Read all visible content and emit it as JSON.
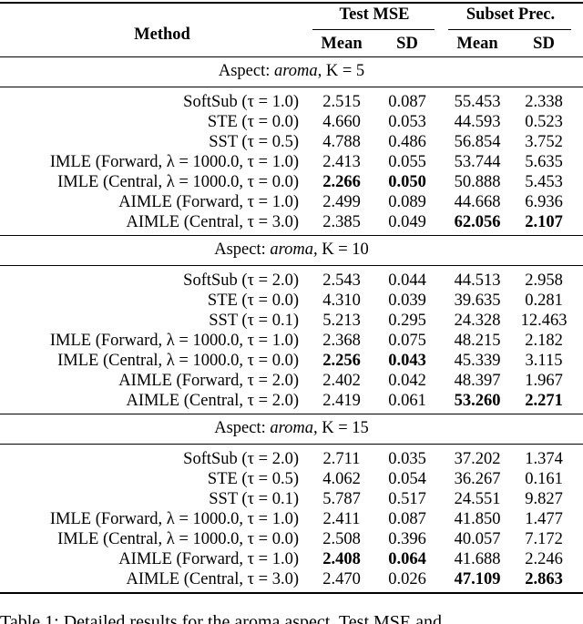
{
  "table": {
    "header": {
      "method": "Method",
      "groups": [
        {
          "label": "Test MSE",
          "cols": [
            "Mean",
            "SD"
          ]
        },
        {
          "label": "Subset Prec.",
          "cols": [
            "Mean",
            "SD"
          ]
        }
      ]
    },
    "sections": [
      {
        "aspect": {
          "prefix": "Aspect:",
          "name": "aroma",
          "k": "K = 5"
        },
        "rows": [
          [
            "SoftSub (τ = 1.0)",
            "2.515",
            "0.087",
            "55.453",
            "2.338"
          ],
          [
            "STE (τ = 0.0)",
            "4.660",
            "0.053",
            "44.593",
            "0.523"
          ],
          [
            "SST (τ = 0.5)",
            "4.788",
            "0.486",
            "56.854",
            "3.752"
          ],
          [
            "IMLE (Forward, λ = 1000.0, τ = 1.0)",
            "2.413",
            "0.055",
            "53.744",
            "5.635"
          ],
          [
            "IMLE (Central, λ = 1000.0, τ = 0.0)",
            "2.266",
            "0.050",
            "50.888",
            "5.453"
          ],
          [
            "AIMLE (Forward, τ = 1.0)",
            "2.499",
            "0.089",
            "44.668",
            "6.936"
          ],
          [
            "AIMLE (Central, τ = 3.0)",
            "2.385",
            "0.049",
            "62.056",
            "2.107"
          ]
        ],
        "bold": [
          [
            4,
            1
          ],
          [
            4,
            2
          ],
          [
            6,
            3
          ],
          [
            6,
            4
          ]
        ]
      },
      {
        "aspect": {
          "prefix": "Aspect:",
          "name": "aroma",
          "k": "K = 10"
        },
        "rows": [
          [
            "SoftSub (τ = 2.0)",
            "2.543",
            "0.044",
            "44.513",
            "2.958"
          ],
          [
            "STE (τ = 0.0)",
            "4.310",
            "0.039",
            "39.635",
            "0.281"
          ],
          [
            "SST (τ = 0.1)",
            "5.213",
            "0.295",
            "24.328",
            "12.463"
          ],
          [
            "IMLE (Forward, λ = 1000.0, τ = 1.0)",
            "2.368",
            "0.075",
            "48.215",
            "2.182"
          ],
          [
            "IMLE (Central, λ = 1000.0, τ = 0.0)",
            "2.256",
            "0.043",
            "45.339",
            "3.115"
          ],
          [
            "AIMLE (Forward, τ = 2.0)",
            "2.402",
            "0.042",
            "48.397",
            "1.967"
          ],
          [
            "AIMLE (Central, τ = 2.0)",
            "2.419",
            "0.061",
            "53.260",
            "2.271"
          ]
        ],
        "bold": [
          [
            4,
            1
          ],
          [
            4,
            2
          ],
          [
            6,
            3
          ],
          [
            6,
            4
          ]
        ]
      },
      {
        "aspect": {
          "prefix": "Aspect:",
          "name": "aroma",
          "k": "K = 15"
        },
        "rows": [
          [
            "SoftSub (τ = 2.0)",
            "2.711",
            "0.035",
            "37.202",
            "1.374"
          ],
          [
            "STE (τ = 0.5)",
            "4.062",
            "0.054",
            "36.267",
            "0.161"
          ],
          [
            "SST (τ = 0.1)",
            "5.787",
            "0.517",
            "24.551",
            "9.827"
          ],
          [
            "IMLE (Forward, λ = 1000.0, τ = 1.0)",
            "2.411",
            "0.087",
            "41.850",
            "1.477"
          ],
          [
            "IMLE (Central, λ = 1000.0, τ = 0.0)",
            "2.508",
            "0.396",
            "40.057",
            "7.172"
          ],
          [
            "AIMLE (Forward, τ = 1.0)",
            "2.408",
            "0.064",
            "41.688",
            "2.246"
          ],
          [
            "AIMLE (Central, τ = 3.0)",
            "2.470",
            "0.026",
            "47.109",
            "2.863"
          ]
        ],
        "bold": [
          [
            5,
            1
          ],
          [
            5,
            2
          ],
          [
            6,
            3
          ],
          [
            6,
            4
          ]
        ]
      }
    ],
    "caption": "Table 1: Detailed results for the aroma aspect, Test MSE and"
  }
}
